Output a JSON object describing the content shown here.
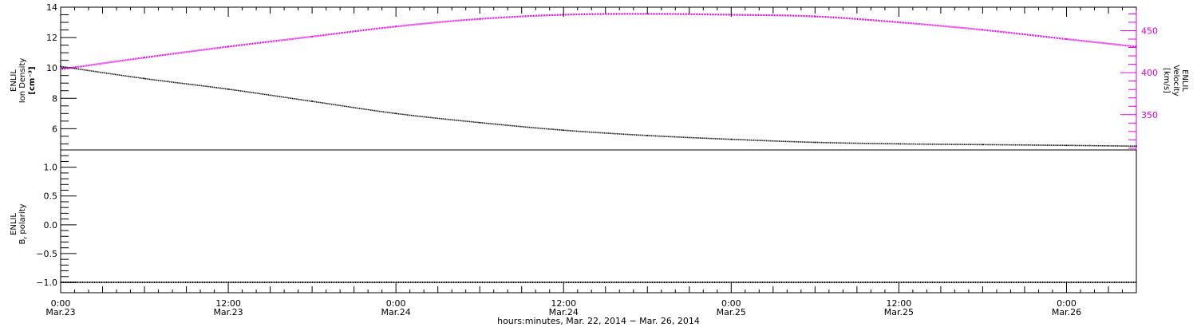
{
  "colors": {
    "density": "#000000",
    "velocity": "#e000e0",
    "frame": "#000000"
  },
  "chart_data": [
    {
      "type": "line",
      "panel": "top",
      "ylabel_left": {
        "line1": "ENLIL",
        "line2": "Ion Density",
        "line3": "[cm⁻³]"
      },
      "ylabel_right": {
        "line1": "ENLIL",
        "line2": "Velocity",
        "line3": "[km/s]"
      },
      "x_range": [
        "2014-03-23T00:00",
        "2014-03-26T05:00"
      ],
      "ylim_left": [
        4.6,
        14.0
      ],
      "yticks_left": [
        "6",
        "8",
        "10",
        "12",
        "14"
      ],
      "ylim_right": [
        308,
        478
      ],
      "yticks_right": [
        "350",
        "400",
        "450"
      ],
      "series": [
        {
          "axis": "left",
          "x": [
            "2014-03-23T00:00",
            "2014-03-23T06:00",
            "2014-03-23T12:00",
            "2014-03-23T18:00",
            "2014-03-24T00:00",
            "2014-03-24T06:00",
            "2014-03-24T12:00",
            "2014-03-24T18:00",
            "2014-03-25T00:00",
            "2014-03-25T06:00",
            "2014-03-25T12:00",
            "2014-03-25T18:00",
            "2014-03-26T00:00",
            "2014-03-26T05:00"
          ],
          "values": [
            10.1,
            9.3,
            8.6,
            7.8,
            7.0,
            6.4,
            5.9,
            5.55,
            5.3,
            5.1,
            5.0,
            4.95,
            4.9,
            4.85
          ]
        },
        {
          "axis": "right",
          "x": [
            "2014-03-23T00:00",
            "2014-03-23T06:00",
            "2014-03-23T12:00",
            "2014-03-23T18:00",
            "2014-03-24T00:00",
            "2014-03-24T06:00",
            "2014-03-24T12:00",
            "2014-03-24T18:00",
            "2014-03-25T00:00",
            "2014-03-25T06:00",
            "2014-03-25T12:00",
            "2014-03-25T18:00",
            "2014-03-26T00:00",
            "2014-03-26T05:00"
          ],
          "values": [
            404,
            418,
            431,
            443,
            455,
            464,
            469,
            470,
            469,
            467,
            460,
            451,
            440,
            431
          ]
        }
      ]
    },
    {
      "type": "line",
      "panel": "bottom",
      "ylabel_left": {
        "line1": "ENLIL",
        "line2": "B",
        "line2_sub": "r",
        "line2_rest": " polarity"
      },
      "x_range": [
        "2014-03-23T00:00",
        "2014-03-26T05:00"
      ],
      "ylim": [
        -1.18,
        1.3
      ],
      "yticks": [
        "−1.0",
        "−0.5",
        "0.0",
        "0.5",
        "1.0"
      ],
      "series": [
        {
          "x": [
            "2014-03-23T00:00",
            "2014-03-26T05:00"
          ],
          "values": [
            -1.0,
            -1.0
          ]
        }
      ]
    }
  ],
  "x_axis": {
    "tick_labels": [
      {
        "time": "0:00",
        "date": "Mar.23"
      },
      {
        "time": "12:00",
        "date": "Mar.23"
      },
      {
        "time": "0:00",
        "date": "Mar.24"
      },
      {
        "time": "12:00",
        "date": "Mar.24"
      },
      {
        "time": "0:00",
        "date": "Mar.25"
      },
      {
        "time": "12:00",
        "date": "Mar.25"
      },
      {
        "time": "0:00",
        "date": "Mar.26"
      }
    ],
    "title": "hours:minutes, Mar. 22, 2014 − Mar. 26, 2014"
  }
}
